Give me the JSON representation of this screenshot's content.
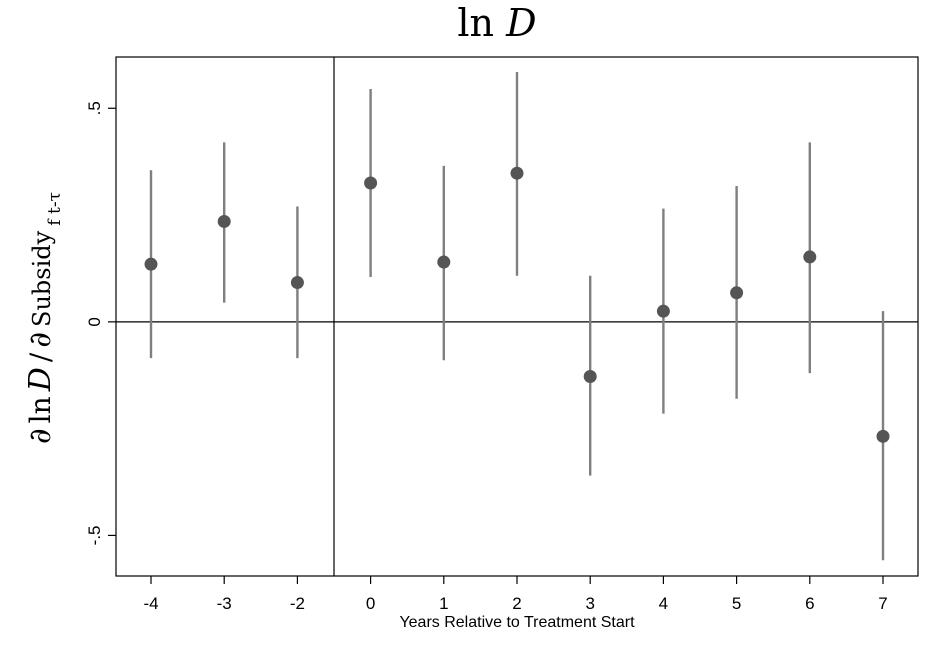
{
  "chart_data": {
    "type": "scatter",
    "title_prefix": "ln",
    "title_var": "D",
    "xlabel": "Years Relative to Treatment Start",
    "ylabel": {
      "partial": "∂",
      "ln": "ln",
      "var": "D",
      "slash": "/",
      "partial2": "∂",
      "word": "Subsidy",
      "sub": "f t-τ"
    },
    "x_ticks": [
      "-4",
      "-3",
      "-2",
      "0",
      "1",
      "2",
      "3",
      "4",
      "5",
      "6",
      "7"
    ],
    "y_ticks": [
      {
        "value": 0.5,
        "label": ".5"
      },
      {
        "value": 0,
        "label": "0"
      },
      {
        "value": -0.5,
        "label": "-.5"
      }
    ],
    "ylim": [
      -0.595,
      0.62
    ],
    "reference_lines": {
      "y": 0,
      "x_between": [
        "-2",
        "0"
      ]
    },
    "grid": false,
    "marker_color": "#555555",
    "ci_color": "#7f7f7f",
    "points": [
      {
        "x": "-4",
        "y": 0.135,
        "lo": -0.085,
        "hi": 0.355
      },
      {
        "x": "-3",
        "y": 0.235,
        "lo": 0.045,
        "hi": 0.42
      },
      {
        "x": "-2",
        "y": 0.092,
        "lo": -0.085,
        "hi": 0.27
      },
      {
        "x": "0",
        "y": 0.325,
        "lo": 0.105,
        "hi": 0.545
      },
      {
        "x": "1",
        "y": 0.14,
        "lo": -0.09,
        "hi": 0.365
      },
      {
        "x": "2",
        "y": 0.348,
        "lo": 0.108,
        "hi": 0.585
      },
      {
        "x": "3",
        "y": -0.128,
        "lo": -0.36,
        "hi": 0.108
      },
      {
        "x": "4",
        "y": 0.025,
        "lo": -0.215,
        "hi": 0.265
      },
      {
        "x": "5",
        "y": 0.068,
        "lo": -0.18,
        "hi": 0.318
      },
      {
        "x": "6",
        "y": 0.152,
        "lo": -0.12,
        "hi": 0.42
      },
      {
        "x": "7",
        "y": -0.268,
        "lo": -0.558,
        "hi": 0.025
      }
    ]
  }
}
